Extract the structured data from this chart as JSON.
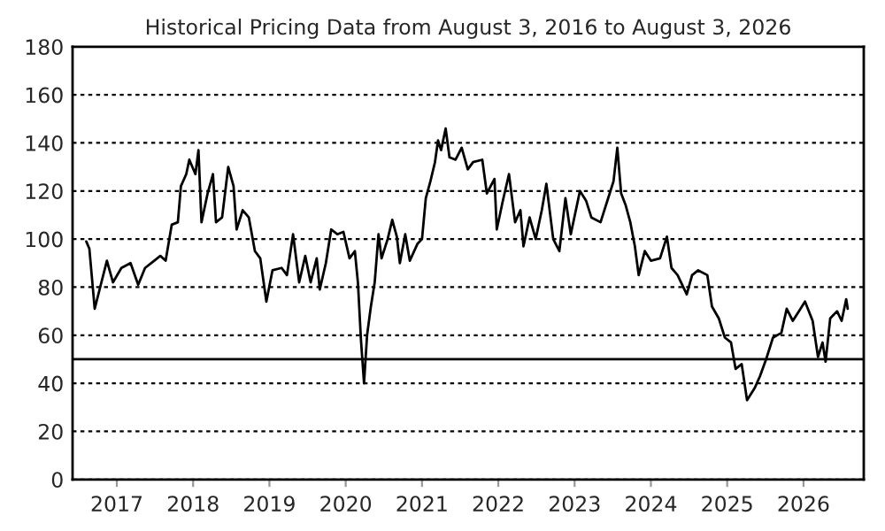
{
  "chart_data": {
    "type": "line",
    "title": "Historical Pricing Data from August 3, 2016 to August 3, 2026",
    "x": [
      2016.6,
      2016.64,
      2016.71,
      2016.79,
      2016.87,
      2016.95,
      2017.06,
      2017.18,
      2017.28,
      2017.37,
      2017.49,
      2017.57,
      2017.64,
      2017.72,
      2017.8,
      2017.84,
      2017.91,
      2017.95,
      2018.03,
      2018.07,
      2018.11,
      2018.19,
      2018.26,
      2018.3,
      2018.38,
      2018.46,
      2018.53,
      2018.57,
      2018.65,
      2018.73,
      2018.81,
      2018.88,
      2018.96,
      2019.04,
      2019.16,
      2019.23,
      2019.31,
      2019.39,
      2019.47,
      2019.54,
      2019.62,
      2019.66,
      2019.74,
      2019.81,
      2019.89,
      2019.97,
      2020.05,
      2020.12,
      2020.16,
      2020.2,
      2020.24,
      2020.28,
      2020.33,
      2020.38,
      2020.43,
      2020.47,
      2020.55,
      2020.61,
      2020.67,
      2020.71,
      2020.78,
      2020.84,
      2020.94,
      2021.0,
      2021.05,
      2021.11,
      2021.17,
      2021.21,
      2021.25,
      2021.31,
      2021.36,
      2021.44,
      2021.52,
      2021.6,
      2021.67,
      2021.79,
      2021.85,
      2021.95,
      2021.98,
      2022.06,
      2022.14,
      2022.22,
      2022.29,
      2022.33,
      2022.41,
      2022.49,
      2022.57,
      2022.63,
      2022.72,
      2022.8,
      2022.88,
      2022.95,
      2023.07,
      2023.15,
      2023.22,
      2023.34,
      2023.46,
      2023.51,
      2023.56,
      2023.61,
      2023.67,
      2023.73,
      2023.79,
      2023.84,
      2023.92,
      2024.0,
      2024.12,
      2024.21,
      2024.27,
      2024.35,
      2024.47,
      2024.54,
      2024.62,
      2024.74,
      2024.8,
      2024.89,
      2024.97,
      2025.05,
      2025.11,
      2025.19,
      2025.26,
      2025.36,
      2025.43,
      2025.51,
      2025.6,
      2025.71,
      2025.78,
      2025.86,
      2025.94,
      2026.02,
      2026.12,
      2026.19,
      2026.25,
      2026.29,
      2026.35,
      2026.44,
      2026.5,
      2026.56,
      2026.58
    ],
    "series": [
      {
        "color": "#000000",
        "values": [
          99,
          96,
          71,
          81,
          91,
          82,
          88,
          90,
          81,
          88,
          91,
          93,
          91,
          106,
          107,
          122,
          127,
          133,
          127,
          137,
          107,
          119,
          127,
          107,
          109,
          130,
          122,
          104,
          112,
          109,
          95,
          92,
          74,
          87,
          88,
          85,
          102,
          82,
          93,
          82,
          92,
          79,
          90,
          104,
          102,
          103,
          92,
          95,
          82,
          58,
          40,
          60,
          72,
          82,
          102,
          92,
          100,
          108,
          101,
          90,
          102,
          91,
          98,
          100,
          117,
          124,
          132,
          141,
          137,
          146,
          134,
          133,
          138,
          129,
          132,
          133,
          119,
          125,
          104,
          116,
          127,
          107,
          112,
          97,
          109,
          100,
          112,
          123,
          100,
          95,
          117,
          102,
          120,
          116,
          109,
          107,
          119,
          124,
          138,
          119,
          114,
          107,
          97,
          85,
          95,
          91,
          92,
          101,
          88,
          85,
          77,
          85,
          87,
          85,
          72,
          67,
          59,
          57,
          46,
          48,
          33,
          38,
          43,
          50,
          59,
          61,
          71,
          66,
          70,
          74,
          66,
          51,
          57,
          49,
          67,
          70,
          66,
          75,
          71
        ]
      }
    ],
    "xlim": [
      2016.42,
      2026.79
    ],
    "xticks": [
      2017,
      2018,
      2019,
      2020,
      2021,
      2022,
      2023,
      2024,
      2025,
      2026
    ],
    "ylim": [
      0,
      180
    ],
    "yticks": [
      0,
      20,
      40,
      60,
      80,
      100,
      120,
      140,
      160,
      180
    ],
    "grid": "y",
    "legend": false,
    "ref_lines": [
      {
        "axis": "y",
        "value": 50,
        "color": "#000000",
        "line_style": "solid"
      }
    ]
  }
}
